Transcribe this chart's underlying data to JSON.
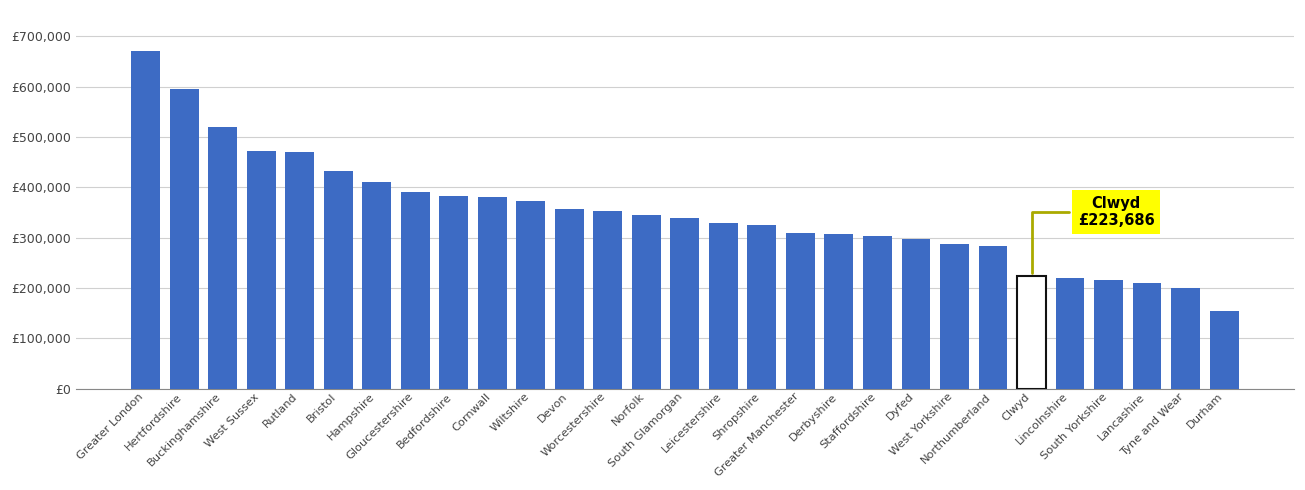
{
  "categories": [
    "Greater London",
    "Hertfordshire",
    "Buckinghamshire",
    "West Sussex",
    "Rutland",
    "Bristol",
    "Hampshire",
    "Gloucestershire",
    "Bedfordshire",
    "Cornwall",
    "Wiltshire",
    "Devon",
    "Worcestershire",
    "Norfolk",
    "South Glamorgan",
    "Leicestershire",
    "Shropshire",
    "Greater Manchester",
    "Derbyshire",
    "Staffordshire",
    "Dyfed",
    "West Yorkshire",
    "Northumberland",
    "Clwyd",
    "Lincolnshire",
    "South Yorkshire",
    "Lancashire",
    "Tyne and Wear",
    "Durham"
  ],
  "values": [
    670000,
    595000,
    520000,
    472000,
    470000,
    432000,
    410000,
    390000,
    383000,
    380000,
    372000,
    357000,
    353000,
    345000,
    340000,
    330000,
    325000,
    310000,
    308000,
    303000,
    298000,
    288000,
    283000,
    223686,
    220000,
    215000,
    210000,
    200000,
    155000
  ],
  "clwyd_index": 23,
  "clwyd_value": 223686,
  "bar_color": "#3d6bc4",
  "highlight_color": "#ffffff",
  "highlight_edge_color": "#111111",
  "annotation_bg": "#ffff00",
  "annotation_text": "Clwyd\n£223,686",
  "ylabel": "",
  "background_color": "#ffffff",
  "grid_color": "#d0d0d0",
  "ylim_max": 750000,
  "ytick_step": 100000
}
